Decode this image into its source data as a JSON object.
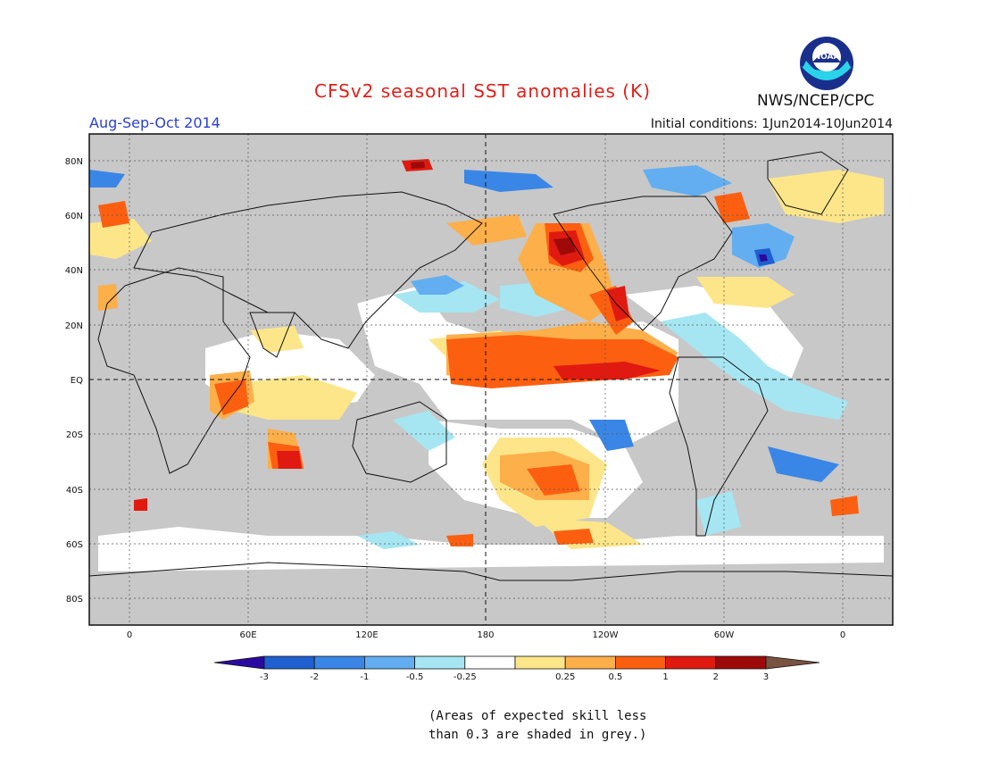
{
  "header": {
    "title": "CFSv2 seasonal SST anomalies (K)",
    "season": "Aug-Sep-Oct 2014",
    "initial_conditions": "Initial conditions: 1Jun2014-10Jun2014",
    "agency": "NWS/NCEP/CPC",
    "logo_text": "NOAA"
  },
  "axes": {
    "lat_labels": [
      "80N",
      "60N",
      "40N",
      "20N",
      "EQ",
      "20S",
      "40S",
      "60S",
      "80S"
    ],
    "lon_labels": [
      "0",
      "60E",
      "120E",
      "180",
      "120W",
      "60W",
      "0"
    ]
  },
  "colorbar": {
    "labels": [
      "-3",
      "-2",
      "-1",
      "-0.5",
      "-0.25",
      "0.25",
      "0.5",
      "1",
      "2",
      "3"
    ],
    "colors": [
      "#2a0aa0",
      "#1f5fd0",
      "#3a86e6",
      "#62aef0",
      "#a6e6f2",
      "#ffffff",
      "#fde68a",
      "#fdaf4a",
      "#fc5f10",
      "#e01a10",
      "#9e0a0a",
      "#7a5240"
    ]
  },
  "note": {
    "line1": "(Areas of expected skill less",
    "line2": "than 0.3 are shaded in grey.)"
  },
  "colors": {
    "land": "#c8c8c8",
    "ocean_neutral": "#ffffff",
    "grid": "#333333"
  }
}
